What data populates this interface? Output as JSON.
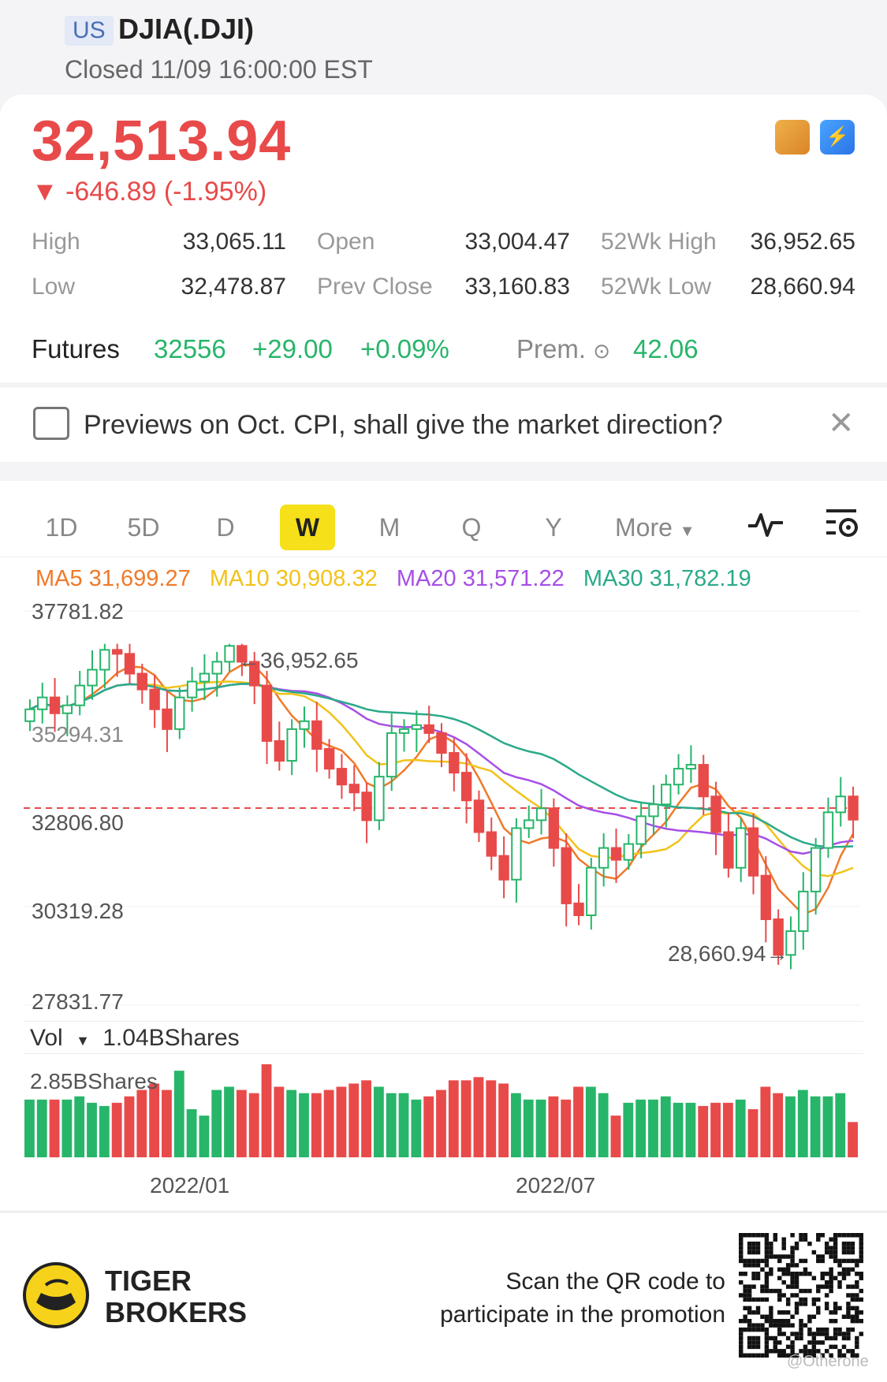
{
  "header": {
    "market": "US",
    "symbol": "DJIA(.DJI)",
    "status": "Closed 11/09 16:00:00 EST"
  },
  "quote": {
    "price": "32,513.94",
    "change": "▼  -646.89 (-1.95%)",
    "stats": [
      {
        "label": "High",
        "value": "33,065.11"
      },
      {
        "label": "Open",
        "value": "33,004.47"
      },
      {
        "label": "52Wk High",
        "value": "36,952.65"
      },
      {
        "label": "Low",
        "value": "32,478.87"
      },
      {
        "label": "Prev Close",
        "value": "33,160.83"
      },
      {
        "label": "52Wk Low",
        "value": "28,660.94"
      }
    ],
    "futures": {
      "label": "Futures",
      "price": "32556",
      "change": "+29.00",
      "pct": "+0.09%",
      "prem_label": "Prem.",
      "prem": "42.06"
    }
  },
  "news": {
    "text": "Previews on Oct. CPI, shall give the market direction?",
    "close_icon": "close-icon"
  },
  "tabs": [
    "1D",
    "5D",
    "D",
    "W",
    "M",
    "Q",
    "Y"
  ],
  "tab_active": "W",
  "more_label": "More",
  "ma": [
    {
      "label": "MA5 31,699.27",
      "color": "#f07a2a"
    },
    {
      "label": "MA10 30,908.32",
      "color": "#f2c21a"
    },
    {
      "label": "MA20 31,571.22",
      "color": "#a64ee6"
    },
    {
      "label": "MA30 31,782.19",
      "color": "#2aaa8a"
    }
  ],
  "chart_data": {
    "type": "candlestick",
    "y_ticks": [
      "37781.82",
      "32806.80",
      "30319.28",
      "27831.77"
    ],
    "y_tick_values": [
      37781.82,
      32806.8,
      30319.28,
      27831.77
    ],
    "ylim": [
      27831.77,
      37781.82
    ],
    "partial_label": "35294.31",
    "high_annotation": "←36,952.65",
    "low_annotation": "28,660.94→",
    "high_value": 36952.65,
    "low_value": 28660.94,
    "ref_line": 32806.8,
    "x_labels": [
      "2022/01",
      "2022/07"
    ],
    "closes": [
      35300,
      35600,
      35200,
      35400,
      35900,
      36300,
      36800,
      36700,
      36200,
      35800,
      35300,
      34800,
      35600,
      36000,
      36200,
      36500,
      36900,
      36500,
      35900,
      34500,
      34000,
      34800,
      35000,
      34300,
      33800,
      33400,
      33200,
      32500,
      33600,
      34700,
      34800,
      34900,
      34700,
      34200,
      33700,
      33000,
      32200,
      31600,
      31000,
      32300,
      32500,
      32800,
      31800,
      30400,
      30100,
      31300,
      31800,
      31500,
      31900,
      32600,
      32900,
      33400,
      33800,
      33900,
      33100,
      32200,
      31300,
      32300,
      31100,
      30000,
      29100,
      29700,
      30700,
      31800,
      32700,
      33100,
      32513.94
    ],
    "volume": {
      "label": "Vol",
      "summary": "1.04BShares",
      "max_label": "2.85BShares",
      "values": [
        1.8,
        1.8,
        1.8,
        1.8,
        1.9,
        1.7,
        1.6,
        1.7,
        1.9,
        2.1,
        2.3,
        2.1,
        2.7,
        1.5,
        1.3,
        2.1,
        2.2,
        2.1,
        2.0,
        2.9,
        2.2,
        2.1,
        2.0,
        2.0,
        2.1,
        2.2,
        2.3,
        2.4,
        2.2,
        2.0,
        2.0,
        1.8,
        1.9,
        2.1,
        2.4,
        2.4,
        2.5,
        2.4,
        2.3,
        2.0,
        1.8,
        1.8,
        1.9,
        1.8,
        2.2,
        2.2,
        2.0,
        1.3,
        1.7,
        1.8,
        1.8,
        1.9,
        1.7,
        1.7,
        1.6,
        1.7,
        1.7,
        1.8,
        1.5,
        2.2,
        2.0,
        1.9,
        2.1,
        1.9,
        1.9,
        2.0,
        1.1
      ]
    }
  },
  "footer": {
    "brand_line1": "TIGER",
    "brand_line2": "BROKERS",
    "promo_line1": "Scan the QR code to",
    "promo_line2": "participate in the promotion",
    "handle": "@Otherone"
  },
  "colors": {
    "up": "#27b56a",
    "down": "#e84a4a",
    "active_tab": "#f6e01a"
  }
}
